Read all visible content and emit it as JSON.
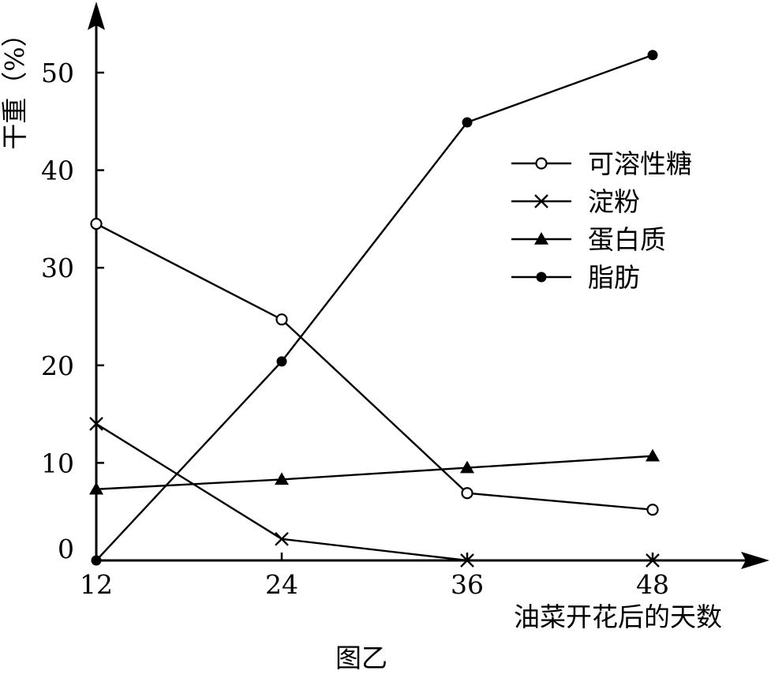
{
  "chart_data": {
    "type": "line",
    "title": "",
    "caption": "图乙",
    "ylabel": "干重（%）",
    "xlabel": "油菜开花后的天数",
    "x": [
      12,
      24,
      36,
      48
    ],
    "x_ticks": [
      "12",
      "24",
      "36",
      "48"
    ],
    "y_ticks": [
      0,
      10,
      20,
      30,
      40,
      50
    ],
    "ylim": [
      0,
      50
    ],
    "grid": false,
    "legend_position": "right",
    "series": [
      {
        "name": "可溶性糖",
        "marker": "open-circle",
        "values": [
          34.5,
          24.7,
          6.9,
          5.2
        ]
      },
      {
        "name": "淀粉",
        "marker": "cross",
        "values": [
          14.0,
          2.2,
          0.0,
          0.0
        ]
      },
      {
        "name": "蛋白质",
        "marker": "filled-triangle",
        "values": [
          7.3,
          8.3,
          9.5,
          10.7
        ]
      },
      {
        "name": "脂肪",
        "marker": "filled-circle",
        "values": [
          0.0,
          20.4,
          44.9,
          51.8
        ]
      }
    ]
  }
}
